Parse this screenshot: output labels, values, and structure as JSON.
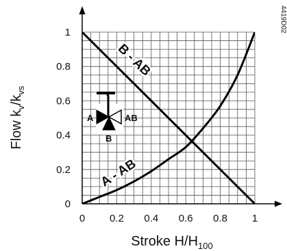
{
  "code_label": "4419D02",
  "chart_data": {
    "type": "line",
    "xlabel_main": "Stroke H/H",
    "xlabel_sub": "100",
    "ylabel_main": "Flow k",
    "ylabel_sub1": "v",
    "ylabel_mid": "/k",
    "ylabel_sub2": "vs",
    "xlim": [
      0,
      1
    ],
    "ylim": [
      0,
      1
    ],
    "x_ticks": [
      "0",
      "0.2",
      "0.4",
      "0.6",
      "0.8",
      "1"
    ],
    "y_ticks": [
      "0",
      "0.2",
      "0.4",
      "0.6",
      "0.8",
      "1"
    ],
    "grid": true,
    "series": [
      {
        "name": "B - AB",
        "x": [
          0,
          1
        ],
        "y": [
          1,
          0
        ]
      },
      {
        "name": "A - AB",
        "x": [
          0,
          0.1,
          0.2,
          0.3,
          0.4,
          0.5,
          0.6,
          0.7,
          0.8,
          0.9,
          1.0
        ],
        "y": [
          0,
          0.04,
          0.08,
          0.13,
          0.19,
          0.26,
          0.33,
          0.44,
          0.57,
          0.75,
          1.0
        ]
      }
    ]
  },
  "valve_symbol": {
    "port_a": "A",
    "port_ab": "AB",
    "port_b": "B"
  }
}
